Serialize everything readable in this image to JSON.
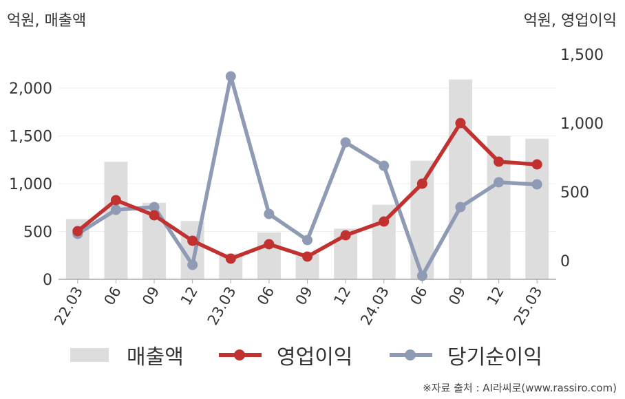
{
  "header": {
    "left_unit": "억원, 매출액",
    "right_unit": "억원, 영업이익"
  },
  "legend": {
    "sales": "매출액",
    "operating_profit": "영업이익",
    "net_income": "당기순이익"
  },
  "source": "※자료 출처 : AI라씨로(www.rassiro.com)",
  "colors": {
    "sales": "#dddddd",
    "operating_profit": "#c0312f",
    "net_income": "#8f9ab5",
    "axis": "#aaaaaa",
    "grid": "#eeeeee",
    "text": "#333333"
  },
  "chart_data": {
    "type": "bar+line",
    "categories": [
      "22.03",
      "06",
      "09",
      "12",
      "23.03",
      "06",
      "09",
      "12",
      "24.03",
      "06",
      "09",
      "12",
      "25.03"
    ],
    "left_axis": {
      "ticks": [
        "0",
        "500",
        "1,000",
        "1,500",
        "2,000"
      ],
      "ylim": [
        0,
        2000
      ]
    },
    "right_axis": {
      "ticks": [
        "0",
        "500",
        "1,000",
        "1,500"
      ],
      "ylim": [
        0,
        1500
      ]
    },
    "series": [
      {
        "name": "매출액",
        "type": "bar",
        "axis": "left",
        "values": [
          630,
          1230,
          800,
          610,
          270,
          490,
          270,
          530,
          780,
          1240,
          2090,
          1500,
          1470
        ]
      },
      {
        "name": "영업이익",
        "type": "line",
        "axis": "right",
        "values": [
          215,
          440,
          330,
          145,
          15,
          120,
          30,
          185,
          285,
          560,
          1000,
          720,
          700
        ]
      },
      {
        "name": "당기순이익",
        "type": "line",
        "axis": "right",
        "values": [
          195,
          370,
          390,
          -30,
          1340,
          340,
          150,
          860,
          690,
          -110,
          390,
          570,
          555
        ]
      }
    ]
  }
}
